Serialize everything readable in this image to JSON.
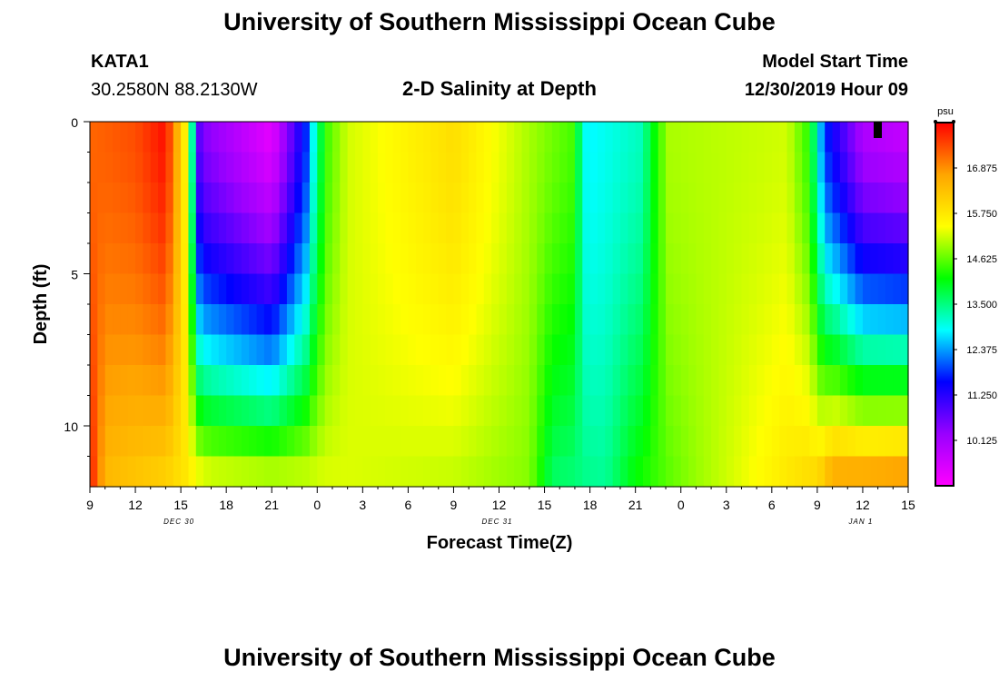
{
  "header": {
    "title_top": "University of Southern Mississippi Ocean Cube",
    "station_id": "KATA1",
    "coords": "30.2580N 88.2130W",
    "product_title": "2-D Salinity at Depth",
    "model_label": "Model Start Time",
    "model_time": "12/30/2019 Hour 09",
    "title_bottom": "University of Southern Mississippi Ocean Cube"
  },
  "chart_data": {
    "type": "heatmap",
    "xlabel": "Forecast Time(Z)",
    "ylabel": "Depth (ft)",
    "x_tick_labels": [
      "9",
      "12",
      "15",
      "18",
      "21",
      "0",
      "3",
      "6",
      "9",
      "12",
      "15",
      "18",
      "21",
      "0",
      "3",
      "6",
      "9",
      "12",
      "15"
    ],
    "date_labels": [
      "DEC 30",
      "DEC 31",
      "JAN 1"
    ],
    "x_range_hours": [
      0,
      54
    ],
    "y_tick_labels": [
      "0",
      "5",
      "10"
    ],
    "ylim_ft": [
      0,
      12
    ],
    "y_reversed": true,
    "colorbar": {
      "unit": "psu",
      "tick_labels": [
        "16.875",
        "15.750",
        "14.625",
        "13.500",
        "12.375",
        "11.250",
        "10.125"
      ],
      "range": [
        9.0,
        18.0
      ]
    },
    "colors": [
      "#ff00ff",
      "#9900ff",
      "#0000ff",
      "#00ffff",
      "#00ff00",
      "#ffff00",
      "#ffa500",
      "#ff0000"
    ],
    "surface_profile": [
      {
        "hour": 0,
        "psu": 17.2
      },
      {
        "hour": 3,
        "psu": 17.4
      },
      {
        "hour": 5,
        "psu": 17.9
      },
      {
        "hour": 6.3,
        "psu": 15.6
      },
      {
        "hour": 7.3,
        "psu": 10.5
      },
      {
        "hour": 12,
        "psu": 9.3
      },
      {
        "hour": 14.3,
        "psu": 11.8
      },
      {
        "hour": 15,
        "psu": 13.5
      },
      {
        "hour": 15.7,
        "psu": 14.5
      },
      {
        "hour": 17,
        "psu": 15.2
      },
      {
        "hour": 24,
        "psu": 15.9
      },
      {
        "hour": 30,
        "psu": 14.8
      },
      {
        "hour": 31.8,
        "psu": 14.5
      },
      {
        "hour": 32.8,
        "psu": 12.8
      },
      {
        "hour": 36.4,
        "psu": 13.2
      },
      {
        "hour": 37.5,
        "psu": 14.4
      },
      {
        "hour": 38.2,
        "psu": 15.0
      },
      {
        "hour": 46,
        "psu": 15.2
      },
      {
        "hour": 47.5,
        "psu": 14.3
      },
      {
        "hour": 48.5,
        "psu": 11.8
      },
      {
        "hour": 51,
        "psu": 10.0
      },
      {
        "hour": 54,
        "psu": 9.7
      }
    ],
    "bottom_profile": [
      {
        "hour": 0,
        "psu": 17.9
      },
      {
        "hour": 1,
        "psu": 16.4
      },
      {
        "hour": 5,
        "psu": 16.0
      },
      {
        "hour": 8,
        "psu": 15.5
      },
      {
        "hour": 15,
        "psu": 15.3
      },
      {
        "hour": 24,
        "psu": 15.1
      },
      {
        "hour": 29,
        "psu": 14.8
      },
      {
        "hour": 30.5,
        "psu": 13.6
      },
      {
        "hour": 34,
        "psu": 13.4
      },
      {
        "hour": 36,
        "psu": 14.2
      },
      {
        "hour": 40,
        "psu": 14.9
      },
      {
        "hour": 45,
        "psu": 15.6
      },
      {
        "hour": 48,
        "psu": 16.1
      },
      {
        "hour": 49,
        "psu": 16.9
      },
      {
        "hour": 54,
        "psu": 17.2
      }
    ]
  }
}
